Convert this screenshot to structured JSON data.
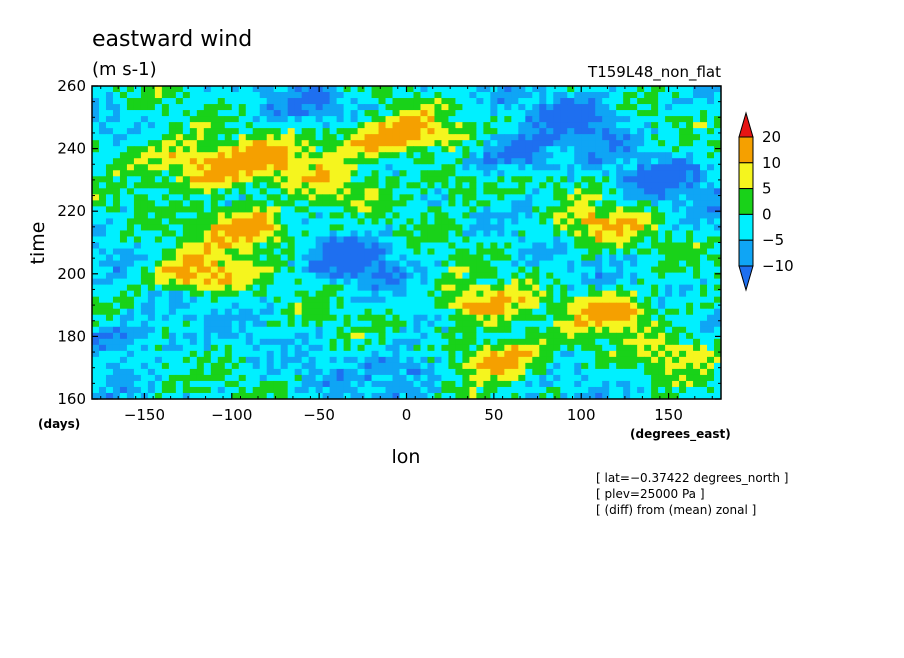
{
  "chart_data": {
    "type": "heatmap",
    "title": "eastward wind",
    "units": "(m s-1)",
    "run_label": "T159L48_non_flat",
    "xlabel": "lon",
    "ylabel": "time",
    "x_units": "(degrees_east)",
    "y_units": "(days)",
    "xlim": [
      -180,
      180
    ],
    "ylim": [
      160,
      260
    ],
    "x_ticks": [
      -150,
      -100,
      -50,
      0,
      50,
      100,
      150
    ],
    "y_ticks": [
      160,
      180,
      200,
      220,
      240,
      260
    ],
    "x_tick_labels": [
      "−150",
      "−100",
      "−50",
      "0",
      "50",
      "100",
      "150"
    ],
    "y_tick_labels": [
      "160",
      "180",
      "200",
      "220",
      "240",
      "260"
    ],
    "colorbar": {
      "levels": [
        -10,
        -5,
        0,
        5,
        10,
        20
      ],
      "labels": [
        "−10",
        "−5",
        "0",
        "5",
        "10",
        "20"
      ],
      "colors": [
        "#1e6ff0",
        "#0fa5f5",
        "#00f0ff",
        "#19d219",
        "#f5f51e",
        "#f5a000",
        "#e61414"
      ],
      "extend": "both"
    },
    "annotations": [
      "[ lat=−0.37422 degrees_north ]",
      "[ plev=25000 Pa ]",
      "[ (diff) from (mean) zonal ]"
    ],
    "features": [
      {
        "lon": -110,
        "time": 232,
        "wind": 16
      },
      {
        "lon": -90,
        "time": 215,
        "wind": 18
      },
      {
        "lon": -75,
        "time": 238,
        "wind": 12
      },
      {
        "lon": -140,
        "time": 238,
        "wind": 10
      },
      {
        "lon": -120,
        "time": 200,
        "wind": 16
      },
      {
        "lon": -20,
        "time": 243,
        "wind": 14
      },
      {
        "lon": 5,
        "time": 245,
        "wind": 10
      },
      {
        "lon": 40,
        "time": 190,
        "wind": 14
      },
      {
        "lon": 55,
        "time": 173,
        "wind": 18
      },
      {
        "lon": 110,
        "time": 215,
        "wind": 12
      },
      {
        "lon": 120,
        "time": 188,
        "wind": 16
      },
      {
        "lon": 160,
        "time": 175,
        "wind": 10
      },
      {
        "lon": 30,
        "time": 228,
        "wind": 7
      },
      {
        "lon": -40,
        "time": 228,
        "wind": 7
      },
      {
        "lon": 60,
        "time": 238,
        "wind": -12
      },
      {
        "lon": -30,
        "time": 205,
        "wind": -12
      },
      {
        "lon": 100,
        "time": 250,
        "wind": -11
      },
      {
        "lon": -160,
        "time": 180,
        "wind": -8
      },
      {
        "lon": 0,
        "time": 170,
        "wind": -9
      },
      {
        "lon": 150,
        "time": 230,
        "wind": -9
      },
      {
        "lon": -50,
        "time": 255,
        "wind": -7
      }
    ]
  }
}
